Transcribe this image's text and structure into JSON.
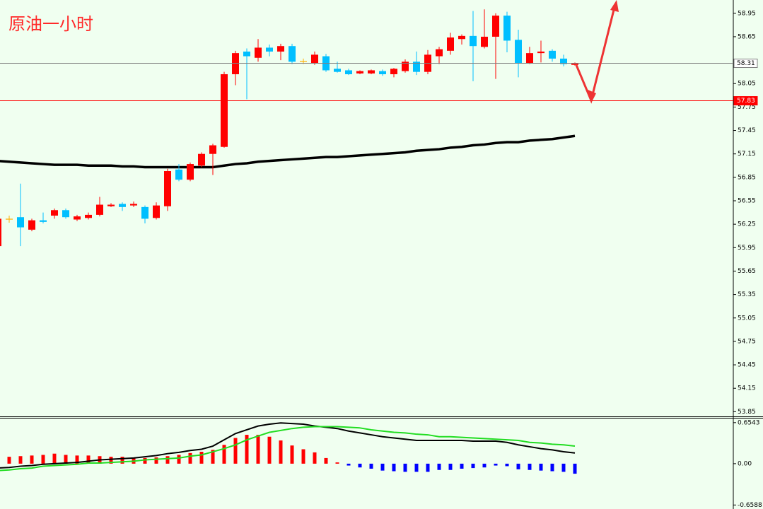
{
  "chart_data": [
    {
      "type": "candlestick",
      "title": "原油一小时",
      "up_color": "#ff0000",
      "down_color": "#00bfff",
      "doji_color": "#ffb000",
      "open": [
        55.97,
        56.32,
        56.34,
        56.18,
        56.3,
        56.36,
        56.43,
        56.31,
        56.33,
        56.37,
        56.48,
        56.51,
        56.49,
        56.47,
        56.33,
        56.48,
        56.95,
        56.82,
        57.0,
        57.15,
        57.24,
        58.17,
        58.46,
        58.38,
        58.51,
        58.46,
        58.53,
        58.34,
        58.31,
        58.4,
        58.24,
        58.22,
        58.18,
        58.18,
        58.21,
        58.17,
        58.21,
        58.33,
        58.2,
        58.4,
        58.47,
        58.62,
        58.66,
        58.52,
        58.65,
        58.92,
        58.61,
        58.31,
        58.44,
        58.47,
        58.37,
        58.29
      ],
      "high": [
        56.34,
        56.36,
        56.77,
        56.32,
        56.4,
        56.45,
        56.45,
        56.37,
        56.4,
        56.6,
        56.52,
        56.53,
        56.54,
        56.49,
        56.53,
        56.96,
        57.02,
        57.04,
        57.17,
        57.28,
        58.2,
        58.47,
        58.5,
        58.62,
        58.55,
        58.56,
        58.56,
        58.37,
        58.46,
        58.43,
        58.33,
        58.24,
        58.22,
        58.23,
        58.23,
        58.25,
        58.36,
        58.46,
        58.48,
        58.52,
        58.7,
        58.68,
        58.98,
        59.0,
        58.95,
        58.97,
        58.74,
        58.52,
        58.6,
        58.49,
        58.42,
        58.32
      ],
      "low": [
        55.95,
        56.27,
        55.97,
        56.16,
        56.26,
        56.32,
        56.32,
        56.29,
        56.31,
        56.35,
        56.47,
        56.42,
        56.47,
        56.26,
        56.31,
        56.42,
        56.8,
        56.8,
        56.98,
        56.88,
        57.23,
        58.03,
        57.85,
        58.33,
        58.4,
        58.35,
        58.3,
        58.3,
        58.29,
        58.2,
        58.19,
        58.16,
        58.17,
        58.17,
        58.15,
        58.13,
        58.19,
        58.16,
        58.17,
        58.3,
        58.42,
        58.55,
        58.08,
        58.5,
        58.11,
        58.45,
        58.13,
        58.3,
        58.32,
        58.33,
        58.27,
        58.28
      ],
      "close": [
        56.32,
        56.32,
        56.21,
        56.3,
        56.28,
        56.43,
        56.34,
        56.35,
        56.37,
        56.5,
        56.5,
        56.47,
        56.51,
        56.32,
        56.49,
        56.93,
        56.82,
        57.02,
        57.15,
        57.26,
        58.17,
        58.44,
        58.4,
        58.51,
        58.46,
        58.53,
        58.33,
        58.34,
        58.42,
        58.22,
        58.2,
        58.17,
        58.21,
        58.22,
        58.17,
        58.24,
        58.33,
        58.2,
        58.42,
        58.49,
        58.64,
        58.66,
        58.53,
        58.65,
        58.92,
        58.6,
        58.31,
        58.44,
        58.46,
        58.37,
        58.3,
        58.31
      ],
      "series": [
        {
          "color": "#000000",
          "values": [
            57.06,
            57.05,
            57.04,
            57.03,
            57.02,
            57.01,
            57.01,
            57.01,
            57.0,
            57.0,
            57.0,
            56.99,
            56.99,
            56.98,
            56.98,
            56.98,
            56.98,
            56.98,
            56.98,
            56.98,
            57.0,
            57.02,
            57.03,
            57.05,
            57.06,
            57.07,
            57.08,
            57.09,
            57.1,
            57.11,
            57.11,
            57.12,
            57.13,
            57.14,
            57.15,
            57.16,
            57.17,
            57.19,
            57.2,
            57.21,
            57.23,
            57.24,
            57.26,
            57.27,
            57.29,
            57.3,
            57.3,
            57.32,
            57.33,
            57.34,
            57.36,
            57.38
          ]
        }
      ],
      "hlines": [
        {
          "value": 58.31,
          "color": "#808080"
        },
        {
          "value": 57.83,
          "color": "#ff0000"
        }
      ],
      "ylim": [
        53.79,
        59.12
      ],
      "yticks": [
        58.95,
        58.65,
        58.05,
        57.75,
        57.45,
        57.15,
        56.85,
        56.55,
        56.25,
        55.95,
        55.65,
        55.35,
        55.05,
        54.75,
        54.45,
        54.15,
        53.85
      ]
    },
    {
      "type": "macd",
      "histogram": [
        null,
        0.11,
        0.12,
        0.13,
        0.14,
        0.16,
        0.14,
        0.13,
        0.13,
        0.12,
        0.11,
        0.11,
        0.1,
        0.09,
        0.1,
        0.12,
        0.14,
        0.17,
        0.19,
        0.22,
        0.3,
        0.41,
        0.46,
        0.46,
        0.43,
        0.37,
        0.29,
        0.23,
        0.18,
        0.09,
        0.02,
        -0.03,
        -0.06,
        -0.08,
        -0.11,
        -0.12,
        -0.13,
        -0.13,
        -0.13,
        -0.1,
        -0.1,
        -0.08,
        -0.07,
        -0.06,
        -0.03,
        -0.04,
        -0.09,
        -0.1,
        -0.11,
        -0.12,
        -0.13,
        -0.16
      ],
      "up_color": "#ff0000",
      "down_color": "#0000ff",
      "series": [
        {
          "color": "#000000",
          "values": [
            -0.07,
            -0.06,
            -0.04,
            -0.03,
            -0.01,
            0.0,
            0.01,
            0.02,
            0.04,
            0.06,
            0.07,
            0.08,
            0.09,
            0.11,
            0.13,
            0.16,
            0.18,
            0.21,
            0.23,
            0.28,
            0.38,
            0.48,
            0.54,
            0.6,
            0.63,
            0.65,
            0.64,
            0.63,
            0.6,
            0.58,
            0.56,
            0.52,
            0.49,
            0.46,
            0.43,
            0.41,
            0.39,
            0.37,
            0.37,
            0.37,
            0.37,
            0.37,
            0.36,
            0.36,
            0.36,
            0.34,
            0.3,
            0.27,
            0.24,
            0.22,
            0.19,
            0.17
          ]
        },
        {
          "color": "#22dd22",
          "values": [
            -0.11,
            -0.1,
            -0.08,
            -0.07,
            -0.04,
            -0.03,
            -0.02,
            -0.01,
            0.01,
            0.01,
            0.02,
            0.03,
            0.04,
            0.06,
            0.07,
            0.08,
            0.09,
            0.12,
            0.14,
            0.19,
            0.24,
            0.3,
            0.38,
            0.44,
            0.5,
            0.53,
            0.56,
            0.58,
            0.59,
            0.59,
            0.59,
            0.58,
            0.57,
            0.54,
            0.52,
            0.5,
            0.49,
            0.47,
            0.46,
            0.43,
            0.43,
            0.42,
            0.41,
            0.4,
            0.39,
            0.38,
            0.37,
            0.34,
            0.33,
            0.31,
            0.3,
            0.28
          ]
        }
      ],
      "ylim": [
        -0.7,
        0.72
      ],
      "yticks": [
        0.6543,
        {
          "value": 0,
          "label": "0.00"
        },
        -0.6588
      ]
    }
  ]
}
